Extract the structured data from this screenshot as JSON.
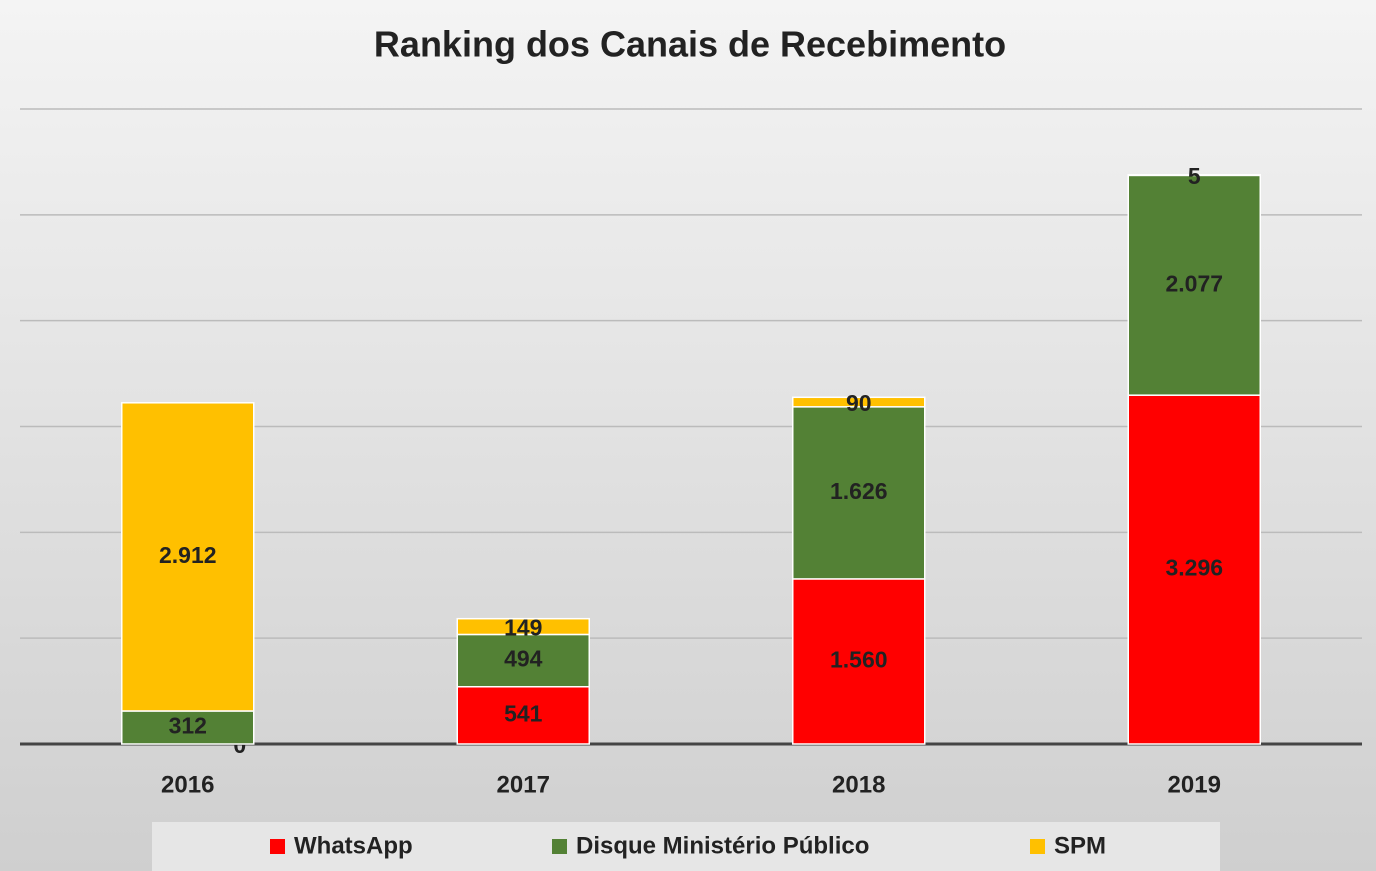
{
  "chart_data": {
    "type": "stacked_bar",
    "title": "Ranking dos Canais de Recebimento",
    "categories": [
      "2016",
      "2017",
      "2018",
      "2019"
    ],
    "series": [
      {
        "name": "WhatsApp",
        "color": "#ff0000",
        "values": [
          0,
          541,
          1560,
          3296
        ],
        "value_labels": [
          "0",
          "541",
          "1.560",
          "3.296"
        ]
      },
      {
        "name": "Disque Ministério Público",
        "color": "#538135",
        "values": [
          312,
          494,
          1626,
          2077
        ],
        "value_labels": [
          "312",
          "494",
          "1.626",
          "2.077"
        ]
      },
      {
        "name": "SPM",
        "color": "#ffc000",
        "values": [
          2912,
          149,
          90,
          5
        ],
        "value_labels": [
          "2.912",
          "149",
          "90",
          "5"
        ]
      }
    ],
    "ylim": [
      0,
      6000
    ],
    "yticks": [
      0,
      1000,
      2000,
      3000,
      4000,
      5000,
      6000
    ],
    "grid": true,
    "legend": "bottom"
  }
}
